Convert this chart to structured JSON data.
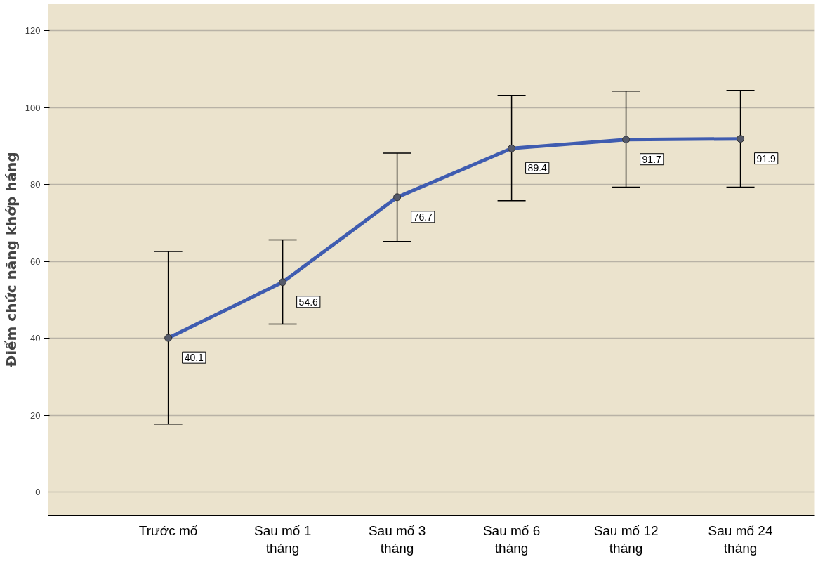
{
  "chart_data": {
    "type": "line",
    "ylabel": "Điểm chức năng khớp háng",
    "categories": [
      "Trước mổ",
      "Sau mổ 1\ntháng",
      "Sau mổ 3\ntháng",
      "Sau mổ 6\ntháng",
      "Sau mổ 12\ntháng",
      "Sau mổ 24\ntháng"
    ],
    "series": [
      {
        "color": "#3f5cb0",
        "values": [
          40.1,
          54.6,
          76.7,
          89.4,
          91.7,
          91.9
        ],
        "errors": [
          [
            17.7,
            62.6
          ],
          [
            43.7,
            65.6
          ],
          [
            65.2,
            88.2
          ],
          [
            75.8,
            103.2
          ],
          [
            79.3,
            104.3
          ],
          [
            79.3,
            104.5
          ]
        ]
      }
    ],
    "data_labels": true,
    "marker": "circle",
    "line_style": "solid",
    "ylim": [
      -6,
      127
    ],
    "yticks": [
      0,
      20,
      40,
      60,
      80,
      100,
      120
    ],
    "grid": "y"
  }
}
